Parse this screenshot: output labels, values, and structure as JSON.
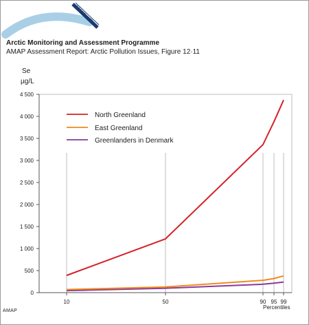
{
  "header": {
    "logo_text": "AMAP",
    "org_title": "Arctic Monitoring and Assessment Programme",
    "report_title": "AMAP Assessment Report: Arctic Pollution Issues, Figure 12·11"
  },
  "footer": {
    "amap_label": "AMAP"
  },
  "colors": {
    "north_greenland": "#d42027",
    "east_greenland": "#f08a1c",
    "greenlanders_denmark": "#8a3a9a",
    "grid": "#bdbdbd",
    "axis": "#555555"
  },
  "chart_data": {
    "type": "line",
    "ylabel": "Se",
    "yunit": "µg/L",
    "xlabel": "Percentiles",
    "ylim": [
      0,
      4500
    ],
    "x_ticks": [
      10,
      50,
      90,
      95,
      99
    ],
    "y_ticks": [
      0,
      500,
      1000,
      1500,
      2000,
      2500,
      3000,
      3500,
      4000,
      4500
    ],
    "y_tick_labels": [
      "0",
      "500",
      "1 000",
      "1 500",
      "2 000",
      "2 500",
      "3 000",
      "3 500",
      "4 000",
      "4 500"
    ],
    "legend_position": "top-left",
    "series": [
      {
        "name": "North Greenland",
        "x": [
          10,
          50,
          90,
          95,
          99
        ],
        "values": [
          390,
          1220,
          3360,
          3880,
          4370
        ]
      },
      {
        "name": "East Greenland",
        "x": [
          10,
          50,
          90,
          95,
          99
        ],
        "values": [
          70,
          130,
          280,
          320,
          380
        ]
      },
      {
        "name": "Greenlanders in Denmark",
        "x": [
          10,
          50,
          90,
          95,
          99
        ],
        "values": [
          45,
          100,
          190,
          215,
          240
        ]
      }
    ]
  }
}
